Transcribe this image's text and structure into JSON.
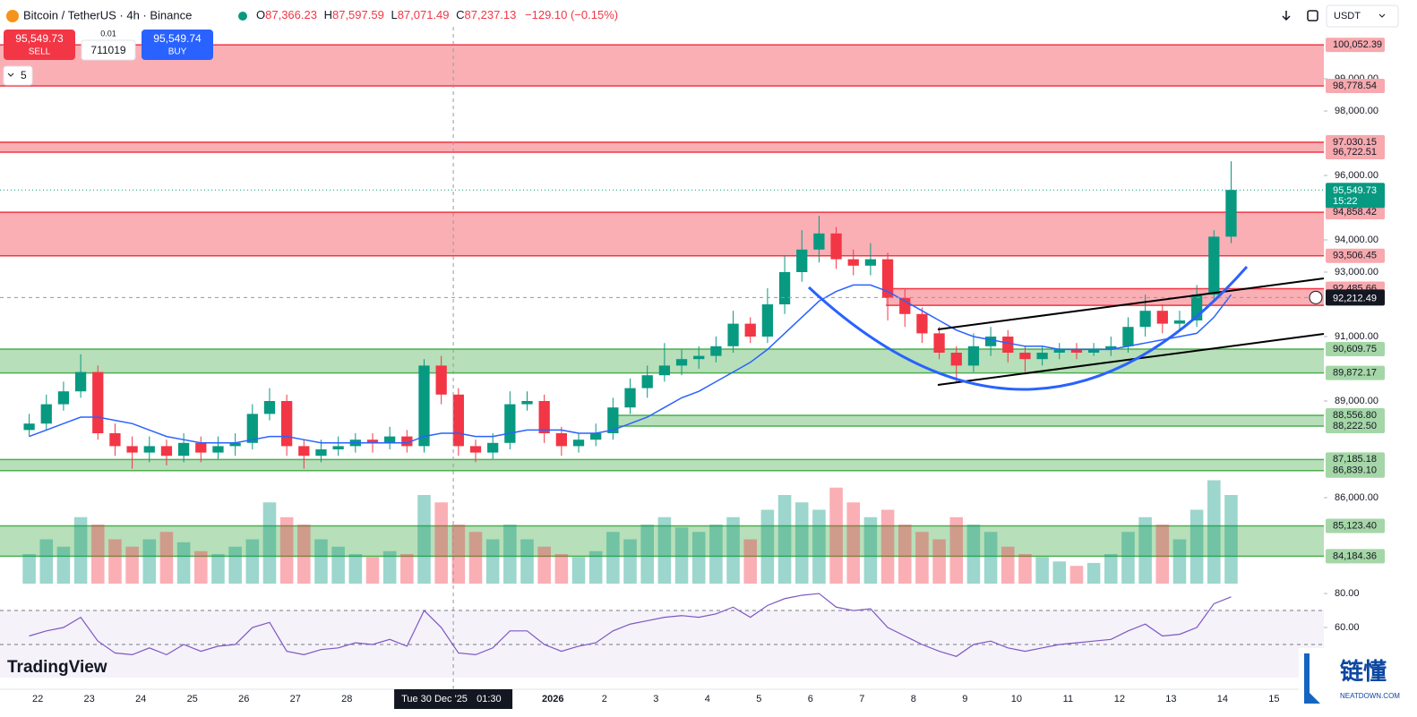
{
  "header": {
    "symbol": "Bitcoin / TetherUS · 4h · Binance",
    "ohlc": [
      {
        "k": "O",
        "v": "87,366.23"
      },
      {
        "k": "H",
        "v": "87,597.59"
      },
      {
        "k": "L",
        "v": "87,071.49"
      },
      {
        "k": "C",
        "v": "87,237.13"
      }
    ],
    "change": "−129.10 (−0.15%)",
    "sell_price": "95,549.73",
    "sell": "SELL",
    "qty_step": "0.01",
    "qty": "711019",
    "buy_price": "95,549.74",
    "buy": "BUY",
    "indicator_count": "5",
    "currency": "USDT"
  },
  "branding": {
    "logo": "TradingView",
    "watermark": "链懂",
    "watermark_url": "NEATDOWN.COM"
  },
  "chart_data": {
    "type": "candlestick",
    "up_color": "#089981",
    "down_color": "#f23645",
    "ma_color": "#2962ff",
    "rsi_color": "#7e57c2",
    "xlim": [
      -1.2,
      75.9
    ],
    "xticks": [
      {
        "value": 1,
        "label": "22"
      },
      {
        "value": 4,
        "label": "23"
      },
      {
        "value": 7,
        "label": "24"
      },
      {
        "value": 10,
        "label": "25"
      },
      {
        "value": 13,
        "label": "26"
      },
      {
        "value": 16,
        "label": "27"
      },
      {
        "value": 19,
        "label": "28"
      },
      {
        "value": 31,
        "label": "2026"
      },
      {
        "value": 34,
        "label": "2"
      },
      {
        "value": 37,
        "label": "3"
      },
      {
        "value": 40,
        "label": "4"
      },
      {
        "value": 43,
        "label": "5"
      },
      {
        "value": 46,
        "label": "6"
      },
      {
        "value": 49,
        "label": "7"
      },
      {
        "value": 52,
        "label": "8"
      },
      {
        "value": 55,
        "label": "9"
      },
      {
        "value": 58,
        "label": "10"
      },
      {
        "value": 61,
        "label": "11"
      },
      {
        "value": 64,
        "label": "12"
      },
      {
        "value": 67,
        "label": "13"
      },
      {
        "value": 70,
        "label": "14"
      },
      {
        "value": 73,
        "label": "15"
      }
    ],
    "ylim": [
      83250,
      100611
    ],
    "yticks": [
      {
        "value": 99000,
        "label": "99,000.00"
      },
      {
        "value": 98000,
        "label": "98,000.00"
      },
      {
        "value": 96000,
        "label": "96,000.00"
      },
      {
        "value": 94000,
        "label": "94,000.00"
      },
      {
        "value": 93000,
        "label": "93,000.00"
      },
      {
        "value": 91000,
        "label": "91,000.00"
      },
      {
        "value": 89000,
        "label": "89,000.00"
      },
      {
        "value": 86000,
        "label": "86,000.00"
      }
    ],
    "open": [
      88100,
      88300,
      88900,
      89300,
      89900,
      88000,
      87600,
      87400,
      87600,
      87300,
      87700,
      87400,
      87600,
      87700,
      88600,
      89000,
      87600,
      87300,
      87500,
      87600,
      87800,
      87700,
      87900,
      87600,
      90100,
      89200,
      87600,
      87400,
      87700,
      88900,
      89000,
      88000,
      87600,
      87800,
      88000,
      88800,
      89400,
      89800,
      90100,
      90300,
      90400,
      90700,
      91400,
      91000,
      92000,
      93000,
      93700,
      94200,
      93400,
      93200,
      93400,
      92200,
      91700,
      91100,
      90500,
      90100,
      90700,
      91000,
      90500,
      90300,
      90500,
      90600,
      90500,
      90600,
      90700,
      91300,
      91800,
      91400,
      91500,
      92300,
      94100
    ],
    "high": [
      88600,
      89200,
      89600,
      90450,
      90100,
      88300,
      87900,
      87900,
      87800,
      88000,
      87900,
      87900,
      88000,
      88900,
      89400,
      89200,
      87800,
      87800,
      87900,
      88000,
      88000,
      88200,
      88100,
      90300,
      90400,
      89400,
      87800,
      88000,
      89300,
      89300,
      89200,
      88200,
      88000,
      88300,
      89100,
      89700,
      90100,
      90800,
      90600,
      90700,
      91000,
      91800,
      91600,
      92500,
      93500,
      94300,
      94750,
      94400,
      93700,
      93900,
      93600,
      92500,
      91900,
      91300,
      90700,
      91100,
      91300,
      91200,
      90700,
      90700,
      90800,
      90800,
      90800,
      91000,
      91600,
      92300,
      92000,
      91800,
      92600,
      94300,
      96440
    ],
    "low": [
      87900,
      88100,
      88700,
      89100,
      87800,
      87300,
      86900,
      87100,
      87000,
      87100,
      87100,
      87200,
      87300,
      87500,
      88400,
      87300,
      86900,
      87100,
      87300,
      87400,
      87400,
      87500,
      87400,
      87400,
      88900,
      87300,
      87100,
      87200,
      87500,
      88700,
      87700,
      87300,
      87400,
      87600,
      87800,
      88600,
      89100,
      89600,
      89800,
      90000,
      90200,
      90500,
      90800,
      90800,
      91700,
      92700,
      93300,
      93100,
      92900,
      92900,
      91500,
      91300,
      90800,
      90300,
      89600,
      89900,
      90400,
      90200,
      89900,
      90100,
      90300,
      90300,
      90400,
      90400,
      90500,
      91000,
      91100,
      91200,
      91300,
      92100,
      93900
    ],
    "close": [
      88300,
      88900,
      89300,
      89900,
      88000,
      87600,
      87400,
      87600,
      87300,
      87700,
      87400,
      87600,
      87700,
      88600,
      89000,
      87600,
      87300,
      87500,
      87600,
      87800,
      87700,
      87900,
      87600,
      90100,
      89200,
      87600,
      87400,
      87700,
      88900,
      89000,
      88000,
      87600,
      87800,
      88000,
      88800,
      89400,
      89800,
      90100,
      90300,
      90400,
      90700,
      91400,
      91000,
      92000,
      93000,
      93700,
      94200,
      93400,
      93200,
      93400,
      92200,
      91700,
      91100,
      90500,
      90100,
      90700,
      91000,
      90500,
      90300,
      90500,
      90600,
      90500,
      90600,
      90700,
      91300,
      91800,
      91400,
      91500,
      92300,
      94100,
      95549.73
    ],
    "ma": [
      87900,
      88100,
      88300,
      88500,
      88500,
      88400,
      88300,
      88100,
      87900,
      87800,
      87700,
      87700,
      87700,
      87800,
      87900,
      87900,
      87800,
      87700,
      87700,
      87700,
      87700,
      87700,
      87700,
      87900,
      88000,
      88000,
      87900,
      87900,
      88000,
      88100,
      88100,
      88100,
      88000,
      88000,
      88100,
      88300,
      88500,
      88800,
      89100,
      89300,
      89600,
      89900,
      90200,
      90600,
      91100,
      91600,
      92100,
      92400,
      92600,
      92600,
      92400,
      92100,
      91800,
      91500,
      91200,
      91000,
      90900,
      90800,
      90700,
      90700,
      90600,
      90600,
      90600,
      90600,
      90700,
      90800,
      90900,
      91000,
      91100,
      91600,
      92300
    ],
    "volume_lim": [
      0,
      100
    ],
    "volume": [
      20,
      30,
      25,
      45,
      40,
      30,
      25,
      30,
      35,
      28,
      22,
      20,
      25,
      30,
      55,
      45,
      40,
      30,
      25,
      20,
      18,
      22,
      20,
      60,
      55,
      40,
      35,
      30,
      40,
      30,
      25,
      20,
      18,
      22,
      35,
      30,
      40,
      45,
      38,
      35,
      40,
      45,
      30,
      50,
      60,
      55,
      50,
      65,
      55,
      45,
      50,
      40,
      35,
      30,
      45,
      40,
      35,
      25,
      20,
      18,
      15,
      12,
      14,
      20,
      35,
      45,
      40,
      30,
      50,
      70,
      60
    ],
    "rsi_ylim": [
      30.5,
      83.2
    ],
    "rsi_yticks": [
      {
        "value": 80,
        "label": "80.00"
      },
      {
        "value": 60,
        "label": "60.00"
      }
    ],
    "rsi_levels": [
      70,
      50
    ],
    "rsi": [
      55,
      58,
      60,
      66,
      52,
      45,
      44,
      48,
      44,
      50,
      46,
      49,
      50,
      60,
      63,
      46,
      44,
      47,
      48,
      51,
      50,
      53,
      49,
      70,
      60,
      45,
      44,
      48,
      58,
      58,
      50,
      46,
      49,
      51,
      58,
      62,
      64,
      66,
      67,
      66,
      68,
      72,
      66,
      73,
      77,
      79,
      80,
      72,
      70,
      71,
      60,
      55,
      50,
      46,
      43,
      50,
      52,
      48,
      46,
      48,
      50,
      51,
      52,
      53,
      58,
      62,
      55,
      56,
      60,
      74,
      78
    ],
    "zones": [
      {
        "color": "#f23645",
        "top": {
          "value": 100052.39,
          "label": "100,052.39"
        },
        "bottom": {
          "value": 98778.54,
          "label": "98,778.54"
        }
      },
      {
        "color": "#f23645",
        "top": {
          "value": 97030.15,
          "label": "97,030.15"
        },
        "bottom": {
          "value": 96722.51,
          "label": "96,722.51"
        }
      },
      {
        "color": "#f23645",
        "top": {
          "value": 94858.42,
          "label": "94,858.42"
        },
        "bottom": {
          "value": 93506.45,
          "label": "93,506.45"
        }
      },
      {
        "color": "#f23645",
        "top": {
          "value": 92485.66,
          "label": "92,485.66"
        },
        "bottom": 91970,
        "x": 50.4
      },
      {
        "color": "#4caf50",
        "top": {
          "value": 90609.75,
          "label": "90,609.75"
        },
        "bottom": {
          "value": 89872.17,
          "label": "89,872.17"
        }
      },
      {
        "color": "#4caf50",
        "top": {
          "value": 88556.8,
          "label": "88,556.80"
        },
        "bottom": {
          "value": 88222.5,
          "label": "88,222.50"
        },
        "x": 34.4
      },
      {
        "color": "#4caf50",
        "top": {
          "value": 87185.18,
          "label": "87,185.18"
        },
        "bottom": {
          "value": 86839.1,
          "label": "86,839.10"
        }
      },
      {
        "color": "#4caf50",
        "top": {
          "value": 85123.4,
          "label": "85,123.40"
        },
        "bottom": {
          "value": 84184.36,
          "label": "84,184.36"
        }
      }
    ],
    "last_price": {
      "value": 95549.73,
      "label": "95,549.73"
    },
    "countdown": "15:22",
    "crosshair": {
      "x": 25.2,
      "price": {
        "value": 92212.49,
        "label": "92,212.49"
      },
      "date": "Tue 30 Dec '25",
      "time": "01:30"
    }
  }
}
